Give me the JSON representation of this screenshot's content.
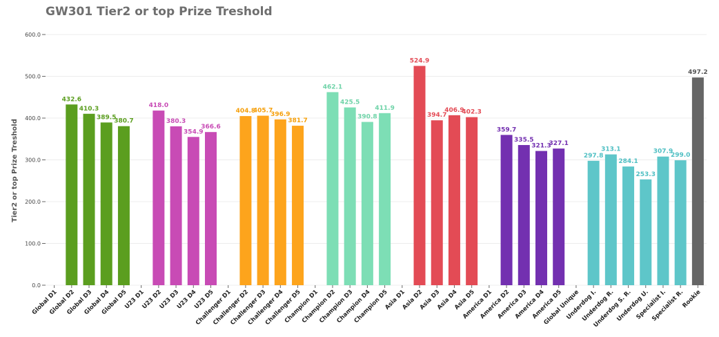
{
  "chart_data": {
    "type": "bar",
    "title": "GW301 Tier2 or top Prize Treshold",
    "xlabel": "",
    "ylabel": "Tier2 or top Prize Treshold",
    "ylim": [
      0,
      600
    ],
    "yticks": [
      "0.0",
      "100.0",
      "200.0",
      "300.0",
      "400.0",
      "500.0",
      "600.0"
    ],
    "grid": true,
    "legend": "none",
    "categories": [
      "Global D1",
      "Global D2",
      "Global D3",
      "Global D4",
      "Global D5",
      "U23 D1",
      "U23 D2",
      "U23 D3",
      "U23 D4",
      "U23 D5",
      "Challenger D1",
      "Challenger D2",
      "Challenger D3",
      "Challenger D4",
      "Challenger D5",
      "Champion D1",
      "Champion D2",
      "Champion D3",
      "Champion D4",
      "Champion D5",
      "Asia D1",
      "Asia D2",
      "Asia D3",
      "Asia D4",
      "Asia D5",
      "America D1",
      "America D2",
      "America D3",
      "America D4",
      "America D5",
      "Global Unique",
      "Underdog I.",
      "Underdog R.",
      "Underdog S. R.",
      "Underdog U.",
      "Specialist I.",
      "Specialist R.",
      "Rookie"
    ],
    "values": [
      null,
      432.6,
      410.3,
      389.5,
      380.7,
      null,
      418.0,
      380.3,
      354.9,
      366.6,
      null,
      404.8,
      405.7,
      396.9,
      381.7,
      null,
      462.1,
      425.5,
      390.8,
      411.9,
      null,
      524.9,
      394.7,
      406.9,
      402.3,
      null,
      359.7,
      335.5,
      321.3,
      327.1,
      null,
      297.8,
      313.1,
      284.1,
      253.3,
      307.9,
      299.0,
      497.2
    ],
    "value_labels": [
      "",
      "432.6",
      "410.3",
      "389.5",
      "380.7",
      "",
      "418.0",
      "380.3",
      "354.9",
      "366.6",
      "",
      "404.8",
      "405.7",
      "396.9",
      "381.7",
      "",
      "462.1",
      "425.5",
      "390.8",
      "411.9",
      "",
      "524.9",
      "394.7",
      "406.9",
      "402.3",
      "",
      "359.7",
      "335.5",
      "321.3",
      "327.1",
      "",
      "297.8",
      "313.1",
      "284.1",
      "253.3",
      "307.9",
      "299.0",
      "497.2"
    ],
    "colors": [
      "#5b9e1f",
      "#5b9e1f",
      "#5b9e1f",
      "#5b9e1f",
      "#5b9e1f",
      "#c84bb5",
      "#c84bb5",
      "#c84bb5",
      "#c84bb5",
      "#c84bb5",
      "#fda41c",
      "#fda41c",
      "#fda41c",
      "#fda41c",
      "#fda41c",
      "#7ddeb5",
      "#7ddeb5",
      "#7ddeb5",
      "#7ddeb5",
      "#7ddeb5",
      "#e34b55",
      "#e34b55",
      "#e34b55",
      "#e34b55",
      "#e34b55",
      "#7330b0",
      "#7330b0",
      "#7330b0",
      "#7330b0",
      "#7330b0",
      "#5ec6c9",
      "#5ec6c9",
      "#5ec6c9",
      "#5ec6c9",
      "#5ec6c9",
      "#5ec6c9",
      "#5ec6c9",
      "#666666"
    ],
    "label_colors": [
      "#5b9e1f",
      "#5b9e1f",
      "#5b9e1f",
      "#5b9e1f",
      "#5b9e1f",
      "#c84bb5",
      "#c84bb5",
      "#c84bb5",
      "#c84bb5",
      "#c84bb5",
      "#f59f0a",
      "#f59f0a",
      "#f59f0a",
      "#f59f0a",
      "#f59f0a",
      "#6fd3a8",
      "#6fd3a8",
      "#6fd3a8",
      "#6fd3a8",
      "#6fd3a8",
      "#e34b55",
      "#e34b55",
      "#e34b55",
      "#e34b55",
      "#e34b55",
      "#7330b0",
      "#7330b0",
      "#7330b0",
      "#7330b0",
      "#7330b0",
      "#4fbfc3",
      "#4fbfc3",
      "#4fbfc3",
      "#4fbfc3",
      "#4fbfc3",
      "#4fbfc3",
      "#4fbfc3",
      "#555555"
    ]
  }
}
